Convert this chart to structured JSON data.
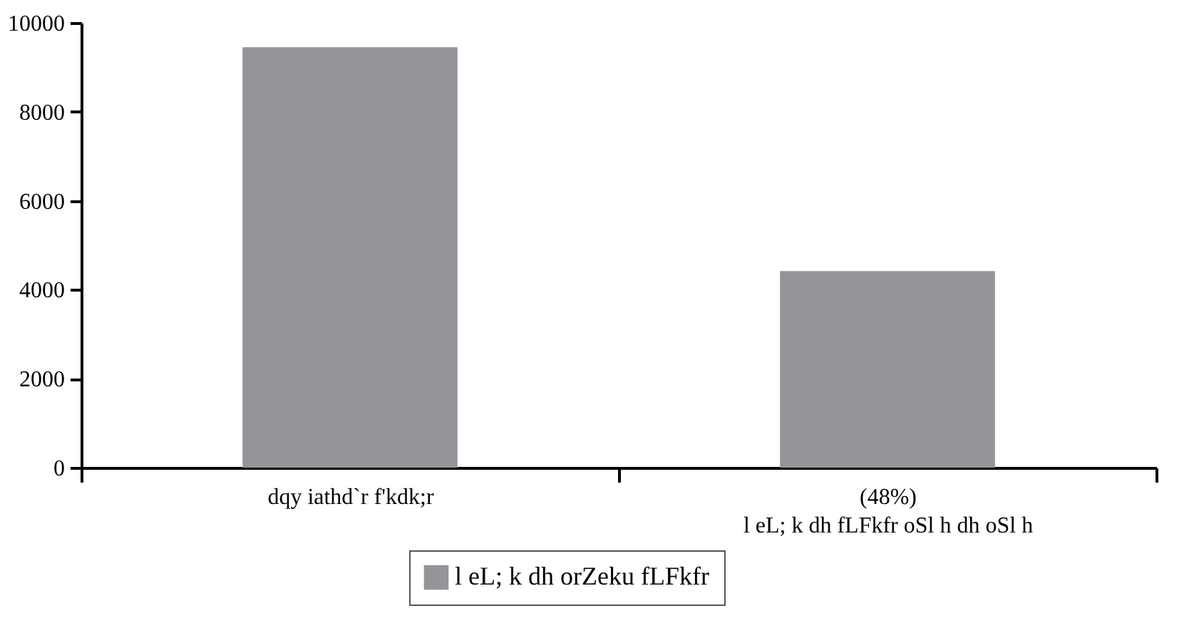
{
  "chart_data": {
    "type": "bar",
    "categories": [
      "dqy iathd`r f'kdk;r",
      "(48%)\nl eL; k dh fLFkfr oSl h dh oSl h"
    ],
    "series": [
      {
        "name": "l eL; k dh orZeku fLFkfr",
        "color": "#939598",
        "values": [
          9450,
          4420
        ]
      }
    ],
    "ylim": [
      0,
      10000
    ],
    "yticks": [
      0,
      2000,
      4000,
      6000,
      8000,
      10000
    ],
    "legend": "bottom"
  }
}
